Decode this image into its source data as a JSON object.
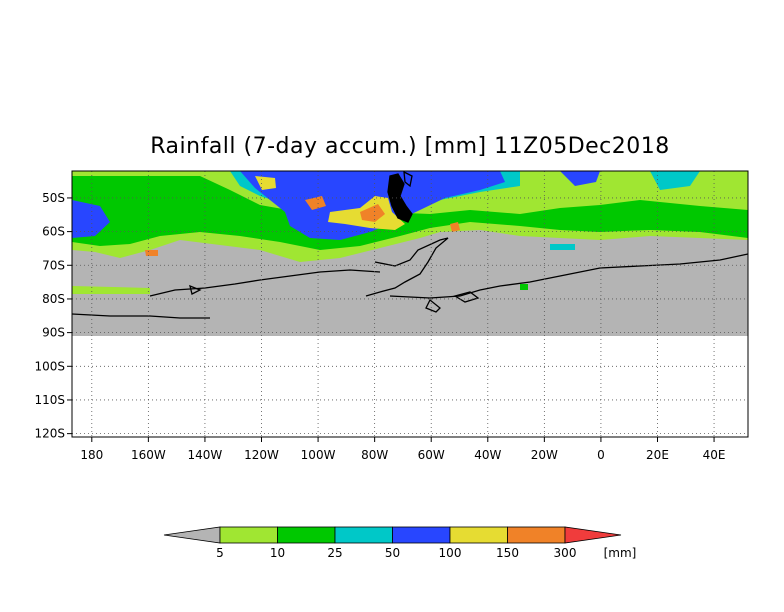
{
  "title": "Rainfall (7-day accum.) [mm] 11Z05Dec2018",
  "map": {
    "lon_range": [
      -187,
      52
    ],
    "lat_range": [
      -121,
      -42
    ],
    "data_extent_lat": [
      -42,
      -90
    ],
    "lat_ticks": [
      {
        "value": -50,
        "label": "50S"
      },
      {
        "value": -60,
        "label": "60S"
      },
      {
        "value": -70,
        "label": "70S"
      },
      {
        "value": -80,
        "label": "80S"
      },
      {
        "value": -90,
        "label": "90S"
      },
      {
        "value": -100,
        "label": "100S"
      },
      {
        "value": -110,
        "label": "110S"
      },
      {
        "value": -120,
        "label": "120S"
      }
    ],
    "lon_ticks": [
      {
        "value": -180,
        "label": "180"
      },
      {
        "value": -160,
        "label": "160W"
      },
      {
        "value": -140,
        "label": "140W"
      },
      {
        "value": -120,
        "label": "120W"
      },
      {
        "value": -100,
        "label": "100W"
      },
      {
        "value": -80,
        "label": "80W"
      },
      {
        "value": -60,
        "label": "60W"
      },
      {
        "value": -40,
        "label": "40W"
      },
      {
        "value": -20,
        "label": "20W"
      },
      {
        "value": 0,
        "label": "0"
      },
      {
        "value": 20,
        "label": "20E"
      },
      {
        "value": 40,
        "label": "40E"
      }
    ],
    "grid": "dotted",
    "no_rain_color": "#b4b4b4"
  },
  "legend": {
    "colors": [
      "#a0e632",
      "#00c800",
      "#00c8c8",
      "#2846ff",
      "#e6dc32",
      "#f08228",
      "#f03c3c"
    ],
    "labels": [
      "5",
      "10",
      "25",
      "50",
      "100",
      "150",
      "300"
    ],
    "units": "[mm]",
    "below_color": "#b4b4b4"
  }
}
